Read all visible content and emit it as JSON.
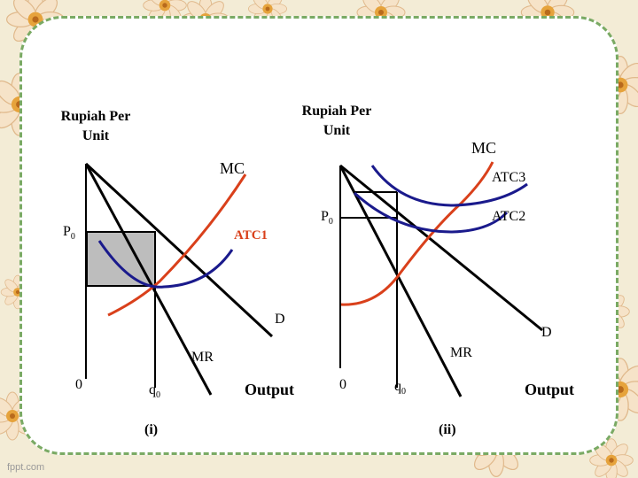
{
  "colors": {
    "background": "#f3ecd6",
    "card": "#ffffff",
    "border_dash": "#7aaa64",
    "mc_curve": "#d9401b",
    "atc_curve": "#1a1a8c",
    "demand_line": "#000000",
    "shaded_profit": "#bdbdbd"
  },
  "decor": {
    "flower_icon": "flower-icon"
  },
  "panel_i": {
    "y_axis_title": "Rupiah Per\nUnit",
    "mc_label": "MC",
    "atc_label": "ATC1",
    "price_label_main": "P",
    "price_label_sub": "0",
    "demand_label": "D",
    "mr_label": "MR",
    "origin_label": "0",
    "q_label_main": "q",
    "q_label_sub": "0",
    "x_axis_title": "Output",
    "caption": "(i)"
  },
  "panel_ii": {
    "y_axis_title": "Rupiah Per\nUnit",
    "mc_label": "MC",
    "atc3_label": "ATC3",
    "atc2_label": "ATC2",
    "price_label_main": "P",
    "price_label_sub": "0",
    "demand_label": "D",
    "mr_label": "MR",
    "origin_label": "0",
    "q_label_main": "q",
    "q_label_sub": "0",
    "x_axis_title": "Output",
    "caption": "(ii)"
  },
  "footer": {
    "watermark": "fppt.com"
  }
}
